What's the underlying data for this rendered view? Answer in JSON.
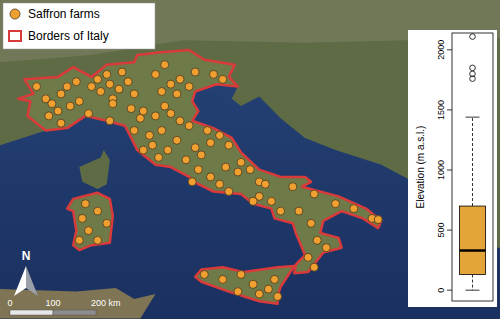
{
  "map": {
    "legend": [
      {
        "label": "Saffron farms",
        "marker": "circle",
        "color": "#f0a030"
      },
      {
        "label": "Borders of Italy",
        "marker": "square",
        "color": "#d93a3a"
      }
    ],
    "north_label": "N",
    "scale_bar": {
      "ticks": [
        0,
        100,
        {
          "value": 200,
          "label": "200 km"
        }
      ]
    },
    "farms": [
      [
        7.2,
        45.6
      ],
      [
        7.5,
        45.1
      ],
      [
        7.7,
        44.9
      ],
      [
        8.0,
        45.3
      ],
      [
        7.9,
        44.6
      ],
      [
        8.3,
        44.8
      ],
      [
        8.6,
        45.0
      ],
      [
        7.6,
        44.4
      ],
      [
        8.2,
        45.6
      ],
      [
        8.5,
        45.8
      ],
      [
        9.0,
        45.6
      ],
      [
        9.3,
        45.4
      ],
      [
        9.6,
        45.7
      ],
      [
        9.9,
        45.5
      ],
      [
        9.2,
        45.9
      ],
      [
        10.2,
        45.8
      ],
      [
        10.4,
        45.3
      ],
      [
        9.7,
        45.1
      ],
      [
        9.5,
        46.1
      ],
      [
        10.0,
        46.2
      ],
      [
        11.1,
        46.1
      ],
      [
        11.4,
        46.5
      ],
      [
        11.6,
        45.7
      ],
      [
        11.9,
        45.9
      ],
      [
        12.2,
        45.6
      ],
      [
        11.3,
        45.4
      ],
      [
        11.8,
        45.3
      ],
      [
        12.4,
        46.2
      ],
      [
        13.0,
        46.1
      ],
      [
        13.3,
        45.9
      ],
      [
        8.0,
        44.1
      ],
      [
        8.9,
        44.5
      ],
      [
        9.6,
        44.2
      ],
      [
        9.7,
        44.9
      ],
      [
        10.3,
        44.7
      ],
      [
        10.7,
        44.6
      ],
      [
        11.1,
        44.4
      ],
      [
        11.6,
        44.5
      ],
      [
        11.9,
        44.2
      ],
      [
        12.2,
        44.0
      ],
      [
        10.6,
        44.3
      ],
      [
        11.4,
        44.8
      ],
      [
        10.4,
        43.8
      ],
      [
        10.9,
        43.6
      ],
      [
        11.3,
        43.8
      ],
      [
        11.0,
        43.2
      ],
      [
        11.5,
        43.0
      ],
      [
        11.8,
        43.4
      ],
      [
        10.7,
        43.0
      ],
      [
        11.2,
        42.7
      ],
      [
        12.4,
        43.1
      ],
      [
        12.6,
        42.8
      ],
      [
        12.9,
        43.3
      ],
      [
        13.2,
        43.6
      ],
      [
        13.5,
        43.2
      ],
      [
        12.8,
        43.8
      ],
      [
        12.1,
        42.6
      ],
      [
        12.5,
        42.2
      ],
      [
        12.9,
        41.9
      ],
      [
        13.2,
        41.6
      ],
      [
        12.3,
        41.7
      ],
      [
        13.5,
        41.3
      ],
      [
        13.4,
        42.3
      ],
      [
        13.8,
        42.1
      ],
      [
        14.2,
        42.2
      ],
      [
        14.5,
        41.7
      ],
      [
        13.9,
        42.5
      ],
      [
        14.7,
        41.6
      ],
      [
        14.5,
        41.1
      ],
      [
        14.9,
        40.9
      ],
      [
        15.2,
        40.5
      ],
      [
        14.3,
        40.9
      ],
      [
        15.6,
        41.5
      ],
      [
        16.3,
        41.2
      ],
      [
        17.0,
        40.8
      ],
      [
        17.6,
        40.6
      ],
      [
        18.2,
        40.2
      ],
      [
        18.4,
        40.15
      ],
      [
        15.8,
        40.5
      ],
      [
        16.2,
        40.0
      ],
      [
        16.4,
        39.3
      ],
      [
        16.7,
        39.0
      ],
      [
        16.1,
        38.6
      ],
      [
        16.3,
        38.2
      ],
      [
        12.7,
        37.9
      ],
      [
        13.3,
        37.7
      ],
      [
        13.9,
        37.9
      ],
      [
        14.3,
        37.5
      ],
      [
        14.8,
        37.3
      ],
      [
        15.0,
        37.7
      ],
      [
        13.8,
        37.2
      ],
      [
        14.5,
        37.1
      ],
      [
        15.1,
        37.0
      ],
      [
        8.8,
        40.8
      ],
      [
        9.2,
        40.5
      ],
      [
        8.7,
        40.2
      ],
      [
        8.9,
        39.7
      ],
      [
        9.2,
        39.3
      ],
      [
        8.6,
        39.3
      ],
      [
        9.5,
        40.0
      ]
    ]
  },
  "chart_data": {
    "type": "box",
    "y_label": "Elevation (m a.s.l.)",
    "ylim": [
      -90,
      2140
    ],
    "yticks": [
      0,
      500,
      1000,
      1500,
      2000
    ],
    "stats": {
      "min": 0,
      "q1": 130,
      "median": 330,
      "q3": 700,
      "max": 1440
    },
    "outliers": [
      1760,
      1800,
      1850,
      2110
    ],
    "color": "#e3a43a",
    "line_style": "dashed",
    "tick_labels": "y"
  }
}
